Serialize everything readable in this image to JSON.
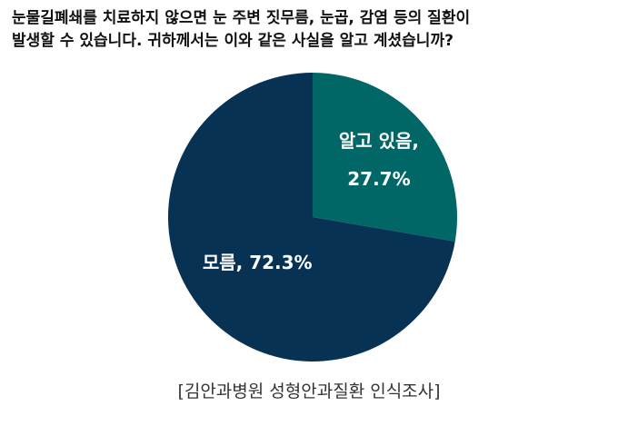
{
  "question": {
    "line1": "눈물길폐쇄를 치료하지 않으면 눈 주변 짓무름, 눈곱, 감염 등의 질환이",
    "line2": "발생할 수 있습니다. 귀하께서는 이와 같은 사실을 알고 계셨습니까?"
  },
  "source": "[김안과병원 성형안과질환 인식조사]",
  "chart_data": {
    "type": "pie",
    "title": "",
    "slices": [
      {
        "label": "알고 있음,",
        "value": 27.7,
        "value_label": "27.7%",
        "color": "#006666"
      },
      {
        "label": "모름, 72.3%",
        "value": 72.3,
        "value_label": "",
        "color": "#083254"
      }
    ],
    "start": "12 o'clock, clockwise",
    "label_color": "#ffffff",
    "legend": "none"
  }
}
